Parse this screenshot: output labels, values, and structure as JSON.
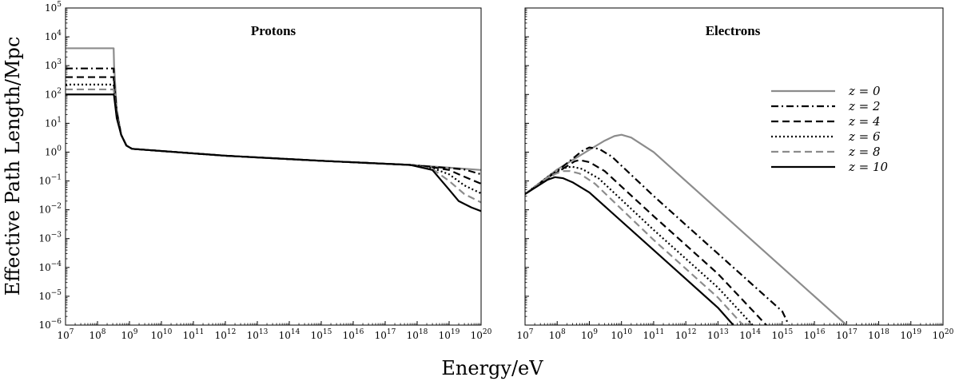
{
  "figure": {
    "ylabel": "Effective Path Length/Mpc",
    "xlabel": "Energy/eV"
  },
  "chart_data": [
    {
      "type": "line",
      "title": "Protons",
      "xscale": "log",
      "yscale": "log",
      "xlim": [
        10000000.0,
        1e+20
      ],
      "ylim": [
        1e-06,
        100000.0
      ],
      "xticks": [
        "10^7",
        "10^8",
        "10^9",
        "10^10",
        "10^11",
        "10^12",
        "10^13",
        "10^14",
        "10^15",
        "10^16",
        "10^17",
        "10^18",
        "10^19",
        "10^20"
      ],
      "yticks": [
        "10^-6",
        "10^-5",
        "10^-4",
        "10^-3",
        "10^-2",
        "10^-1",
        "10^0",
        "10^1",
        "10^2",
        "10^3",
        "10^4",
        "10^5"
      ],
      "xlabel": "Energy/eV",
      "ylabel": "Effective Path Length/Mpc",
      "legend": false,
      "series": [
        {
          "name": "z = 0",
          "color": "#8c8c8c",
          "dash": "solid",
          "x": [
            10000000.0,
            320000000.0,
            330000000.0,
            400000000.0,
            550000000.0,
            800000000.0,
            1200000000.0,
            1000000000000.0,
            1000000000000000.0,
            6e+17,
            1e+19,
            1e+20
          ],
          "y": [
            4000,
            4000,
            1000,
            30,
            4,
            1.7,
            1.3,
            0.75,
            0.5,
            0.36,
            0.29,
            0.24
          ]
        },
        {
          "name": "z = 2",
          "color": "#000000",
          "dash": "dashdot",
          "x": [
            10000000.0,
            320000000.0,
            330000000.0,
            400000000.0,
            550000000.0,
            800000000.0,
            1200000000.0,
            1000000000000.0,
            1000000000000000.0,
            6e+17,
            3e+18,
            1e+19,
            3e+19,
            1e+20
          ],
          "y": [
            800,
            800,
            300,
            25,
            4,
            1.7,
            1.3,
            0.75,
            0.5,
            0.36,
            0.31,
            0.28,
            0.25,
            0.17
          ]
        },
        {
          "name": "z = 4",
          "color": "#000000",
          "dash": "dashed",
          "x": [
            10000000.0,
            320000000.0,
            330000000.0,
            400000000.0,
            550000000.0,
            800000000.0,
            1200000000.0,
            1000000000000.0,
            1000000000000000.0,
            6e+17,
            3e+18,
            1e+19,
            3e+19,
            1e+20
          ],
          "y": [
            400,
            400,
            200,
            22,
            4,
            1.7,
            1.3,
            0.75,
            0.5,
            0.36,
            0.3,
            0.24,
            0.14,
            0.08
          ]
        },
        {
          "name": "z = 6",
          "color": "#000000",
          "dash": "dotted",
          "x": [
            10000000.0,
            320000000.0,
            330000000.0,
            400000000.0,
            550000000.0,
            800000000.0,
            1200000000.0,
            1000000000000.0,
            1000000000000000.0,
            6e+17,
            3e+18,
            1e+19,
            3e+19,
            1e+20
          ],
          "y": [
            220,
            220,
            150,
            20,
            4,
            1.7,
            1.3,
            0.75,
            0.5,
            0.36,
            0.28,
            0.17,
            0.07,
            0.037
          ]
        },
        {
          "name": "z = 8",
          "color": "#8c8c8c",
          "dash": "dashed",
          "x": [
            10000000.0,
            320000000.0,
            330000000.0,
            400000000.0,
            550000000.0,
            800000000.0,
            1200000000.0,
            1000000000000.0,
            1000000000000000.0,
            6e+17,
            3e+18,
            1e+19,
            3e+19,
            1e+20
          ],
          "y": [
            150,
            150,
            110,
            18,
            4,
            1.7,
            1.3,
            0.75,
            0.5,
            0.36,
            0.26,
            0.1,
            0.035,
            0.018
          ]
        },
        {
          "name": "z = 10",
          "color": "#000000",
          "dash": "solid",
          "x": [
            10000000.0,
            320000000.0,
            330000000.0,
            400000000.0,
            550000000.0,
            800000000.0,
            1200000000.0,
            1000000000000.0,
            1000000000000000.0,
            6e+17,
            3e+18,
            1e+19,
            2e+19,
            5e+19,
            1e+20
          ],
          "y": [
            100,
            100,
            90,
            15,
            4,
            1.7,
            1.3,
            0.75,
            0.5,
            0.36,
            0.24,
            0.05,
            0.02,
            0.012,
            0.009
          ]
        }
      ]
    },
    {
      "type": "line",
      "title": "Electrons",
      "xscale": "log",
      "yscale": "log",
      "xlim": [
        10000000.0,
        1e+20
      ],
      "ylim": [
        1e-06,
        100000.0
      ],
      "xticks": [
        "10^7",
        "10^8",
        "10^9",
        "10^10",
        "10^11",
        "10^12",
        "10^13",
        "10^14",
        "10^15",
        "10^16",
        "10^17",
        "10^18",
        "10^19",
        "10^20"
      ],
      "legend": true,
      "legend_position": "right",
      "series": [
        {
          "name": "z = 0",
          "color": "#8c8c8c",
          "dash": "solid",
          "x": [
            10000000.0,
            100000000.0,
            1000000000.0,
            3000000000.0,
            6000000000.0,
            10000000000.0,
            20000000000.0,
            100000000000.0,
            10000000000000.0,
            1000000000000000.0,
            1e+17
          ],
          "y": [
            0.035,
            0.25,
            1.2,
            2.5,
            3.6,
            4.0,
            3.2,
            1.0,
            0.01,
            0.0001,
            1e-06
          ]
        },
        {
          "name": "z = 2",
          "color": "#000000",
          "dash": "dashdot",
          "x": [
            10000000.0,
            100000000.0,
            600000000.0,
            1000000000.0,
            2000000000.0,
            5000000000.0,
            100000000000.0,
            10000000000000.0,
            1000000000000000.0,
            1600000000000000.0
          ],
          "y": [
            0.035,
            0.22,
            1.1,
            1.45,
            1.3,
            0.7,
            0.03,
            0.0003,
            3e-06,
            1e-06
          ]
        },
        {
          "name": "z = 4",
          "color": "#000000",
          "dash": "dashed",
          "x": [
            10000000.0,
            100000000.0,
            350000000.0,
            500000000.0,
            1000000000.0,
            3000000000.0,
            100000000000.0,
            10000000000000.0,
            320000000000000.0
          ],
          "y": [
            0.035,
            0.2,
            0.48,
            0.53,
            0.45,
            0.22,
            0.006,
            6e-05,
            1e-06
          ]
        },
        {
          "name": "z = 6",
          "color": "#000000",
          "dash": "dotted",
          "x": [
            10000000.0,
            70000000.0,
            200000000.0,
            300000000.0,
            600000000.0,
            2000000000.0,
            100000000000.0,
            10000000000000.0,
            120000000000000.0
          ],
          "y": [
            0.035,
            0.18,
            0.3,
            0.31,
            0.26,
            0.12,
            0.002,
            2e-05,
            1e-06
          ]
        },
        {
          "name": "z = 8",
          "color": "#8c8c8c",
          "dash": "dashed",
          "x": [
            10000000.0,
            60000000.0,
            150000000.0,
            250000000.0,
            500000000.0,
            1500000000.0,
            100000000000.0,
            10000000000000.0,
            60000000000000.0
          ],
          "y": [
            0.035,
            0.15,
            0.22,
            0.22,
            0.18,
            0.08,
            0.0009,
            9e-06,
            1e-06
          ]
        },
        {
          "name": "z = 10",
          "color": "#000000",
          "dash": "solid",
          "x": [
            10000000.0,
            50000000.0,
            85000000.0,
            150000000.0,
            300000000.0,
            1000000000.0,
            100000000000.0,
            10000000000000.0,
            30000000000000.0
          ],
          "y": [
            0.035,
            0.11,
            0.135,
            0.125,
            0.09,
            0.04,
            0.0004,
            4e-06,
            1e-06
          ]
        }
      ]
    }
  ]
}
